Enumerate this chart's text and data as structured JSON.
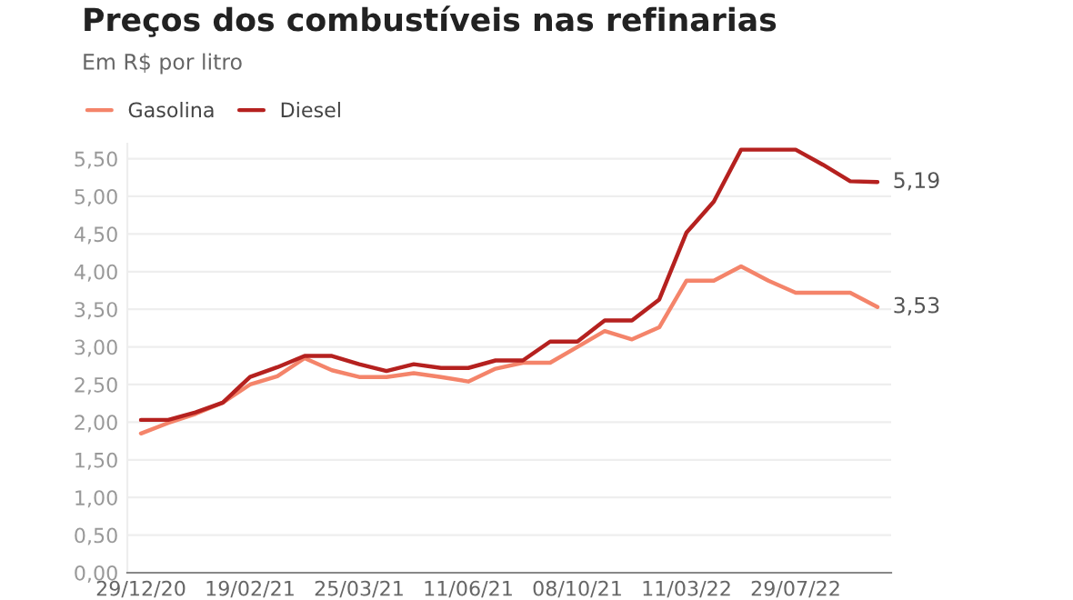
{
  "chart_data": {
    "type": "line",
    "title": "Preços dos combustíveis nas refinarias",
    "subtitle": "Em R$ por litro",
    "categories": [
      "29/12/20",
      null,
      null,
      null,
      "19/02/21",
      null,
      null,
      null,
      "25/03/21",
      null,
      null,
      null,
      "11/06/21",
      null,
      null,
      null,
      "08/10/21",
      null,
      null,
      null,
      "11/03/22",
      null,
      null,
      null,
      "29/07/22",
      null,
      null,
      null
    ],
    "series": [
      {
        "name": "Gasolina",
        "color": "#f4846a",
        "values": [
          1.85,
          1.99,
          2.11,
          2.26,
          2.5,
          2.61,
          2.85,
          2.69,
          2.6,
          2.6,
          2.65,
          2.6,
          2.54,
          2.71,
          2.79,
          2.79,
          3.0,
          3.21,
          3.1,
          3.26,
          3.88,
          3.88,
          4.07,
          3.88,
          3.72,
          3.72,
          3.72,
          3.53
        ],
        "value_labels": [
          null,
          null,
          null,
          null,
          null,
          null,
          null,
          null,
          null,
          null,
          null,
          null,
          null,
          null,
          null,
          null,
          null,
          null,
          null,
          null,
          null,
          null,
          null,
          null,
          null,
          null,
          null,
          "3,53"
        ]
      },
      {
        "name": "Diesel",
        "color": "#b5211f",
        "values": [
          2.03,
          2.03,
          2.13,
          2.26,
          2.6,
          2.73,
          2.88,
          2.88,
          2.77,
          2.68,
          2.77,
          2.72,
          2.72,
          2.82,
          2.82,
          3.07,
          3.07,
          3.35,
          3.35,
          3.63,
          4.52,
          4.93,
          5.62,
          5.62,
          5.62,
          5.42,
          5.2,
          5.19
        ],
        "value_labels": [
          null,
          null,
          null,
          null,
          null,
          null,
          null,
          null,
          null,
          null,
          null,
          null,
          null,
          null,
          null,
          null,
          null,
          null,
          null,
          null,
          null,
          null,
          null,
          null,
          null,
          null,
          null,
          "5,19"
        ]
      }
    ],
    "ylim": [
      0,
      5.7
    ],
    "yticks": [
      {
        "value": 0,
        "label": "0,00"
      },
      {
        "value": 0.5,
        "label": "0,50"
      },
      {
        "value": 1,
        "label": "1,00"
      },
      {
        "value": 1.5,
        "label": "1,50"
      },
      {
        "value": 2,
        "label": "2,00"
      },
      {
        "value": 2.5,
        "label": "2,50"
      },
      {
        "value": 3,
        "label": "3,00"
      },
      {
        "value": 3.5,
        "label": "3,50"
      },
      {
        "value": 4,
        "label": "4,00"
      },
      {
        "value": 4.5,
        "label": "4,50"
      },
      {
        "value": 5,
        "label": "5,00"
      },
      {
        "value": 5.5,
        "label": "5,50"
      }
    ],
    "grid": "y",
    "legend": "top left",
    "marker": "none",
    "line_style": "solid"
  }
}
